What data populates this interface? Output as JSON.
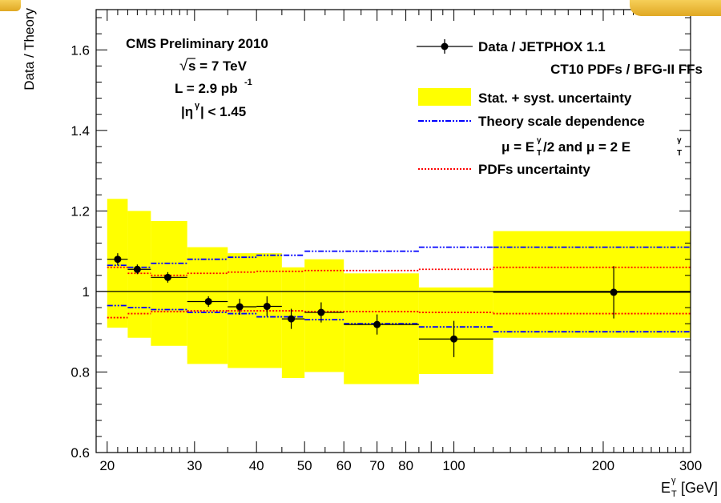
{
  "chart_data": {
    "type": "scatter",
    "xlabel": "E",
    "xlabel_sup": "γ",
    "xlabel_sub": "T",
    "xlabel_unit": "[GeV]",
    "ylabel": "Data / Theory",
    "xscale": "log",
    "xlim": [
      19,
      300
    ],
    "ylim": [
      0.6,
      1.7
    ],
    "grid": false,
    "legend_position": "top-right",
    "x_tick_labels": [
      20,
      30,
      40,
      50,
      60,
      70,
      80,
      100,
      200,
      300
    ],
    "y_tick_labels": [
      "0.6",
      "0.8",
      "1",
      "1.2",
      "1.4",
      "1.6"
    ],
    "reference_line": 1.0,
    "annotation": {
      "line1": "CMS Preliminary 2010",
      "line2": "s = 7 TeV",
      "line2_sqrt": "√",
      "line3": "L = 2.9 pb",
      "line3_sup": "-1",
      "line4": "|η",
      "line4_sup": "γ",
      "line4_tail": "| < 1.45"
    },
    "legend": {
      "data": "Data / JETPHOX 1.1",
      "data_sub": "CT10 PDFs / BFG-II FFs",
      "band": "Stat. + syst. uncertainty",
      "scale": "Theory scale dependence",
      "mu_a": "μ = E",
      "mu_b": "/2 and μ = 2 E",
      "mu_sup": "γ",
      "mu_sub": "T",
      "pdf": "PDFs uncertainty"
    },
    "colors": {
      "band": "#ffff00",
      "scale": "#0000ff",
      "pdf": "#ff0000",
      "data": "#000000"
    },
    "series": [
      {
        "name": "Data / JETPHOX 1.1",
        "points": [
          {
            "x": 21,
            "y": 1.08,
            "xlo": 20,
            "xhi": 22,
            "err": 0.015
          },
          {
            "x": 23,
            "y": 1.055,
            "xlo": 22,
            "xhi": 24.5,
            "err": 0.012
          },
          {
            "x": 26.5,
            "y": 1.035,
            "xlo": 24.5,
            "xhi": 29,
            "err": 0.013
          },
          {
            "x": 32,
            "y": 0.975,
            "xlo": 29,
            "xhi": 35,
            "err": 0.013
          },
          {
            "x": 37,
            "y": 0.962,
            "xlo": 35,
            "xhi": 40,
            "err": 0.02
          },
          {
            "x": 42,
            "y": 0.963,
            "xlo": 40,
            "xhi": 45,
            "err": 0.025
          },
          {
            "x": 47,
            "y": 0.932,
            "xlo": 45,
            "xhi": 50,
            "err": 0.025
          },
          {
            "x": 54,
            "y": 0.948,
            "xlo": 50,
            "xhi": 60,
            "err": 0.025
          },
          {
            "x": 70,
            "y": 0.918,
            "xlo": 60,
            "xhi": 85,
            "err": 0.025
          },
          {
            "x": 100,
            "y": 0.882,
            "xlo": 85,
            "xhi": 120,
            "err": 0.045
          },
          {
            "x": 210,
            "y": 0.998,
            "xlo": 120,
            "xhi": 300,
            "err": 0.065
          }
        ]
      },
      {
        "name": "Stat. + syst. uncertainty",
        "bins": [
          {
            "xlo": 20,
            "xhi": 22,
            "lo": 0.91,
            "hi": 1.23
          },
          {
            "xlo": 22,
            "xhi": 24.5,
            "lo": 0.885,
            "hi": 1.2
          },
          {
            "xlo": 24.5,
            "xhi": 29,
            "lo": 0.865,
            "hi": 1.175
          },
          {
            "xlo": 29,
            "xhi": 35,
            "lo": 0.82,
            "hi": 1.11
          },
          {
            "xlo": 35,
            "xhi": 45,
            "lo": 0.81,
            "hi": 1.095
          },
          {
            "xlo": 45,
            "xhi": 50,
            "lo": 0.785,
            "hi": 1.06
          },
          {
            "xlo": 50,
            "xhi": 60,
            "lo": 0.8,
            "hi": 1.08
          },
          {
            "xlo": 60,
            "xhi": 85,
            "lo": 0.77,
            "hi": 1.045
          },
          {
            "xlo": 85,
            "xhi": 120,
            "lo": 0.795,
            "hi": 1.01
          },
          {
            "xlo": 120,
            "xhi": 300,
            "lo": 0.885,
            "hi": 1.15
          }
        ]
      },
      {
        "name": "Theory scale dependence",
        "upper": [
          {
            "xlo": 20,
            "xhi": 22,
            "y": 1.065
          },
          {
            "xlo": 22,
            "xhi": 24.5,
            "y": 1.06
          },
          {
            "xlo": 24.5,
            "xhi": 29,
            "y": 1.07
          },
          {
            "xlo": 29,
            "xhi": 35,
            "y": 1.08
          },
          {
            "xlo": 35,
            "xhi": 40,
            "y": 1.085
          },
          {
            "xlo": 40,
            "xhi": 50,
            "y": 1.09
          },
          {
            "xlo": 50,
            "xhi": 85,
            "y": 1.1
          },
          {
            "xlo": 85,
            "xhi": 120,
            "y": 1.11
          },
          {
            "xlo": 120,
            "xhi": 300,
            "y": 1.11
          }
        ],
        "lower": [
          {
            "xlo": 20,
            "xhi": 22,
            "y": 0.965
          },
          {
            "xlo": 22,
            "xhi": 24.5,
            "y": 0.96
          },
          {
            "xlo": 24.5,
            "xhi": 29,
            "y": 0.955
          },
          {
            "xlo": 29,
            "xhi": 35,
            "y": 0.948
          },
          {
            "xlo": 35,
            "xhi": 40,
            "y": 0.945
          },
          {
            "xlo": 40,
            "xhi": 50,
            "y": 0.937
          },
          {
            "xlo": 50,
            "xhi": 60,
            "y": 0.93
          },
          {
            "xlo": 60,
            "xhi": 85,
            "y": 0.92
          },
          {
            "xlo": 85,
            "xhi": 120,
            "y": 0.912
          },
          {
            "xlo": 120,
            "xhi": 300,
            "y": 0.9
          }
        ]
      },
      {
        "name": "PDFs uncertainty",
        "upper": [
          {
            "xlo": 20,
            "xhi": 22,
            "y": 1.06
          },
          {
            "xlo": 22,
            "xhi": 24.5,
            "y": 1.045
          },
          {
            "xlo": 24.5,
            "xhi": 29,
            "y": 1.04
          },
          {
            "xlo": 29,
            "xhi": 35,
            "y": 1.045
          },
          {
            "xlo": 35,
            "xhi": 40,
            "y": 1.048
          },
          {
            "xlo": 40,
            "xhi": 50,
            "y": 1.05
          },
          {
            "xlo": 50,
            "xhi": 85,
            "y": 1.052
          },
          {
            "xlo": 85,
            "xhi": 120,
            "y": 1.055
          },
          {
            "xlo": 120,
            "xhi": 300,
            "y": 1.06
          }
        ],
        "lower": [
          {
            "xlo": 20,
            "xhi": 22,
            "y": 0.935
          },
          {
            "xlo": 22,
            "xhi": 24.5,
            "y": 0.945
          },
          {
            "xlo": 24.5,
            "xhi": 29,
            "y": 0.95
          },
          {
            "xlo": 29,
            "xhi": 35,
            "y": 0.952
          },
          {
            "xlo": 35,
            "xhi": 40,
            "y": 0.952
          },
          {
            "xlo": 40,
            "xhi": 50,
            "y": 0.952
          },
          {
            "xlo": 50,
            "xhi": 85,
            "y": 0.95
          },
          {
            "xlo": 85,
            "xhi": 120,
            "y": 0.948
          },
          {
            "xlo": 120,
            "xhi": 300,
            "y": 0.945
          }
        ]
      }
    ]
  }
}
